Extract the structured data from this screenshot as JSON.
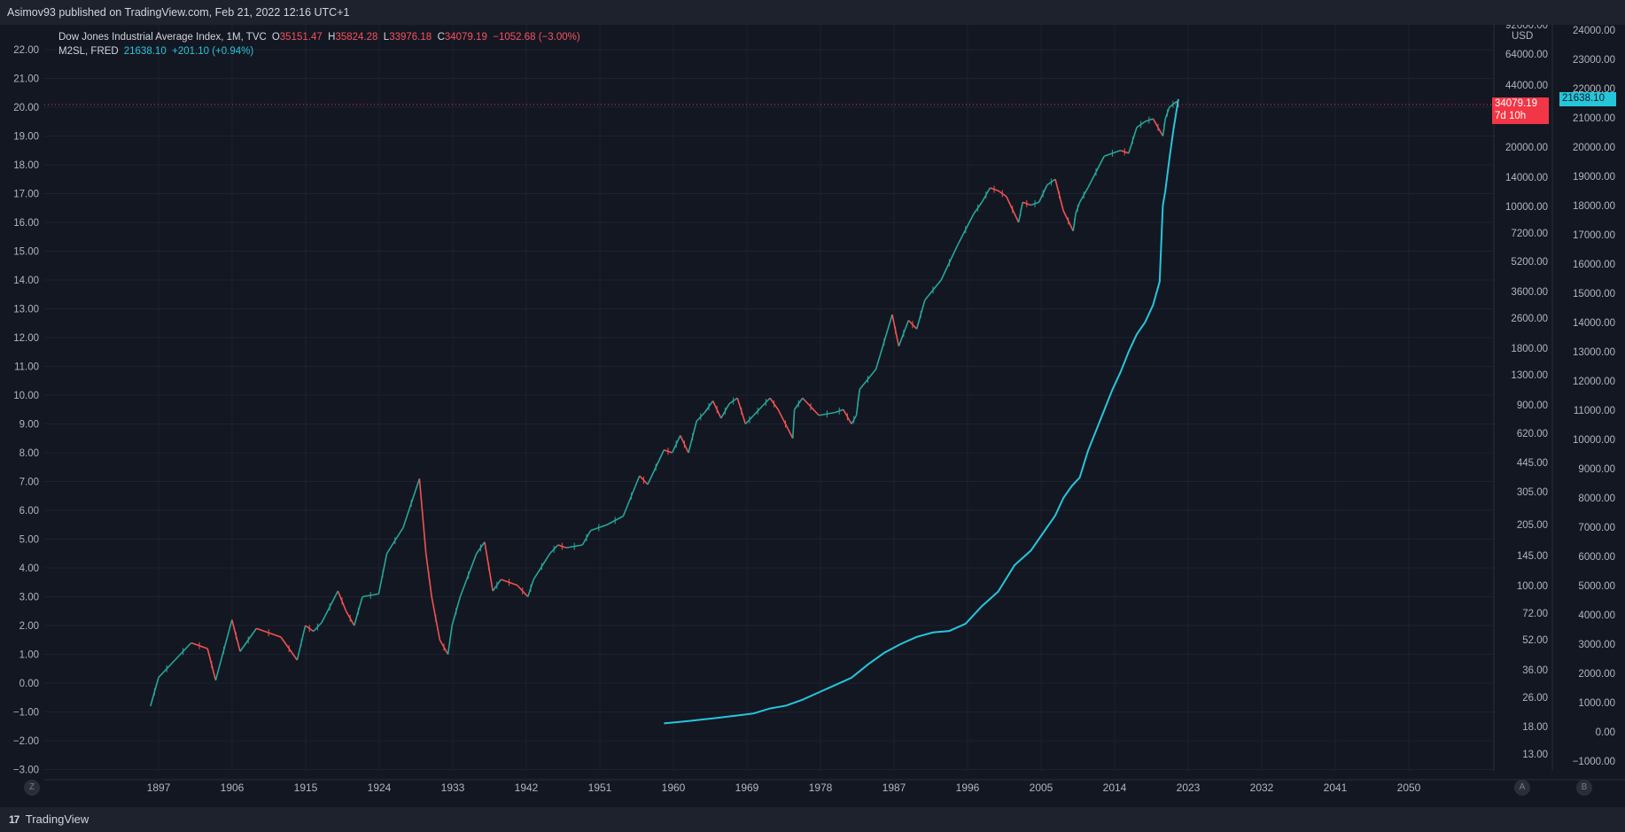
{
  "header": {
    "published": "Asimov93 published on TradingView.com, Feb 21, 2022 12:16 UTC+1"
  },
  "legend": {
    "dow": {
      "name": "Dow Jones Industrial Average Index, 1M, TVC",
      "o_label": "O",
      "o": "35151.47",
      "h_label": "H",
      "h": "35824.28",
      "l_label": "L",
      "l": "33976.18",
      "c_label": "C",
      "c": "34079.19",
      "change": "−1052.68 (−3.00%)"
    },
    "m2": {
      "name": "M2SL, FRED",
      "value": "21638.10",
      "change": "+201.10 (+0.94%)"
    }
  },
  "price_badges": {
    "dow_price": "34079.19",
    "dow_countdown": "7d 10h",
    "m2_price": "21638.10",
    "currency": "USD"
  },
  "corners": {
    "left": "Z",
    "right_a": "A",
    "right_b": "B"
  },
  "footer": {
    "brand": "TradingView"
  },
  "colors": {
    "background": "#131722",
    "up": "#26a69a",
    "down": "#ef5350",
    "m2_line": "#26c6da",
    "price_line": "#f23645"
  },
  "chart_data": {
    "type": "line",
    "series": [
      {
        "name": "Dow Jones Industrial Average Index, 1M, TVC",
        "color": "#26a69a",
        "x": [
          1896,
          1897,
          1899,
          1901,
          1903,
          1904,
          1906,
          1907,
          1909,
          1912,
          1914,
          1915,
          1916,
          1917,
          1919,
          1920,
          1921,
          1922,
          1924,
          1925,
          1927,
          1929,
          1929.8,
          1930.5,
          1931.5,
          1932.5,
          1933,
          1934,
          1936,
          1937,
          1938,
          1939,
          1941,
          1942.3,
          1943,
          1945,
          1946,
          1947,
          1949,
          1950,
          1952,
          1954,
          1956,
          1957,
          1959,
          1960,
          1961,
          1962,
          1963,
          1964,
          1965,
          1966,
          1967,
          1968,
          1969,
          1970,
          1971,
          1972,
          1973,
          1974.8,
          1975,
          1976,
          1978,
          1980,
          1981,
          1982,
          1982.6,
          1983,
          1985,
          1987,
          1987.8,
          1989,
          1990,
          1991,
          1993,
          1995,
          1997,
          1998,
          1999,
          2000,
          2001,
          2002.5,
          2003,
          2004,
          2005,
          2006,
          2007,
          2008,
          2009.2,
          2009.5,
          2010,
          2011,
          2013,
          2015,
          2016,
          2017,
          2018,
          2019,
          2020.2,
          2020.5,
          2021,
          2021.9,
          2022.1
        ],
        "values": [
          -0.8,
          0.2,
          0.8,
          1.4,
          1.2,
          0.1,
          2.2,
          1.1,
          1.9,
          1.6,
          0.8,
          2.0,
          1.8,
          2.1,
          3.2,
          2.5,
          2.0,
          3.0,
          3.1,
          4.5,
          5.4,
          7.1,
          4.5,
          3.0,
          1.5,
          1.0,
          2.0,
          3.0,
          4.5,
          4.9,
          3.2,
          3.6,
          3.4,
          3.0,
          3.6,
          4.5,
          4.8,
          4.7,
          4.8,
          5.3,
          5.5,
          5.8,
          7.2,
          6.9,
          8.1,
          8.0,
          8.6,
          8.0,
          9.1,
          9.4,
          9.8,
          9.2,
          9.7,
          9.9,
          9.0,
          9.3,
          9.6,
          9.9,
          9.5,
          8.5,
          9.5,
          9.9,
          9.3,
          9.4,
          9.5,
          9.0,
          9.3,
          10.2,
          10.9,
          12.8,
          11.7,
          12.6,
          12.3,
          13.3,
          14.0,
          15.2,
          16.3,
          16.7,
          17.2,
          17.1,
          16.9,
          16.0,
          16.7,
          16.6,
          16.7,
          17.3,
          17.5,
          16.4,
          15.7,
          16.3,
          16.7,
          17.2,
          18.3,
          18.5,
          18.4,
          19.3,
          19.5,
          19.6,
          19.0,
          19.6,
          20.0,
          20.2,
          20.0
        ]
      },
      {
        "name": "M2SL, FRED",
        "color": "#26c6da",
        "x": [
          1959,
          1962,
          1965,
          1968,
          1970,
          1972,
          1974,
          1976,
          1978,
          1980,
          1982,
          1984,
          1986,
          1988,
          1990,
          1992,
          1994,
          1996,
          1998,
          2000,
          2002,
          2004,
          2006,
          2007,
          2008,
          2009,
          2010,
          2011,
          2012,
          2013,
          2014,
          2015,
          2016,
          2017,
          2018,
          2019,
          2019.8,
          2020.2,
          2020.5,
          2021,
          2021.5,
          2022.1
        ],
        "values": [
          290,
          370,
          460,
          560,
          630,
          800,
          900,
          1100,
          1350,
          1600,
          1850,
          2300,
          2700,
          3000,
          3250,
          3400,
          3450,
          3700,
          4300,
          4800,
          5700,
          6200,
          7000,
          7400,
          8000,
          8400,
          8700,
          9600,
          10300,
          11000,
          11700,
          12300,
          13000,
          13600,
          14000,
          14600,
          15400,
          18000,
          18500,
          19600,
          20600,
          21638.1
        ]
      }
    ],
    "x_axis": {
      "ticks": [
        "1897",
        "1906",
        "1915",
        "1924",
        "1933",
        "1942",
        "1951",
        "1960",
        "1969",
        "1978",
        "1987",
        "1996",
        "2005",
        "2014",
        "2023",
        "2032",
        "2041",
        "2050"
      ]
    },
    "y_axis_left": {
      "ticks": [
        "22.00",
        "21.00",
        "20.00",
        "19.00",
        "18.00",
        "17.00",
        "16.00",
        "15.00",
        "14.00",
        "13.00",
        "12.00",
        "11.00",
        "10.00",
        "9.00",
        "8.00",
        "7.00",
        "6.00",
        "5.00",
        "4.00",
        "3.00",
        "2.00",
        "1.00",
        "0.00",
        "−1.00",
        "−2.00",
        "−3.00"
      ],
      "ylim": [
        -3,
        22
      ]
    },
    "y_axis_right_dow": {
      "scale": "log",
      "ticks": [
        "92000.00",
        "64000.00",
        "44000.00",
        "20000.00",
        "14000.00",
        "10000.00",
        "7200.00",
        "5200.00",
        "3600.00",
        "2600.00",
        "1800.00",
        "1300.00",
        "900.00",
        "620.00",
        "445.00",
        "305.00",
        "205.00",
        "145.00",
        "100.00",
        "72.00",
        "52.00",
        "36.00",
        "26.00",
        "18.00",
        "13.00"
      ]
    },
    "y_axis_right_m2": {
      "ticks": [
        "24000.00",
        "23000.00",
        "22000.00",
        "21000.00",
        "20000.00",
        "19000.00",
        "18000.00",
        "17000.00",
        "16000.00",
        "15000.00",
        "14000.00",
        "13000.00",
        "12000.00",
        "11000.00",
        "10000.00",
        "9000.00",
        "8000.00",
        "7000.00",
        "6000.00",
        "5000.00",
        "4000.00",
        "3000.00",
        "2000.00",
        "1000.00",
        "0.00",
        "−1000.00"
      ],
      "ylim": [
        -1000,
        24000
      ]
    },
    "grid": true
  }
}
